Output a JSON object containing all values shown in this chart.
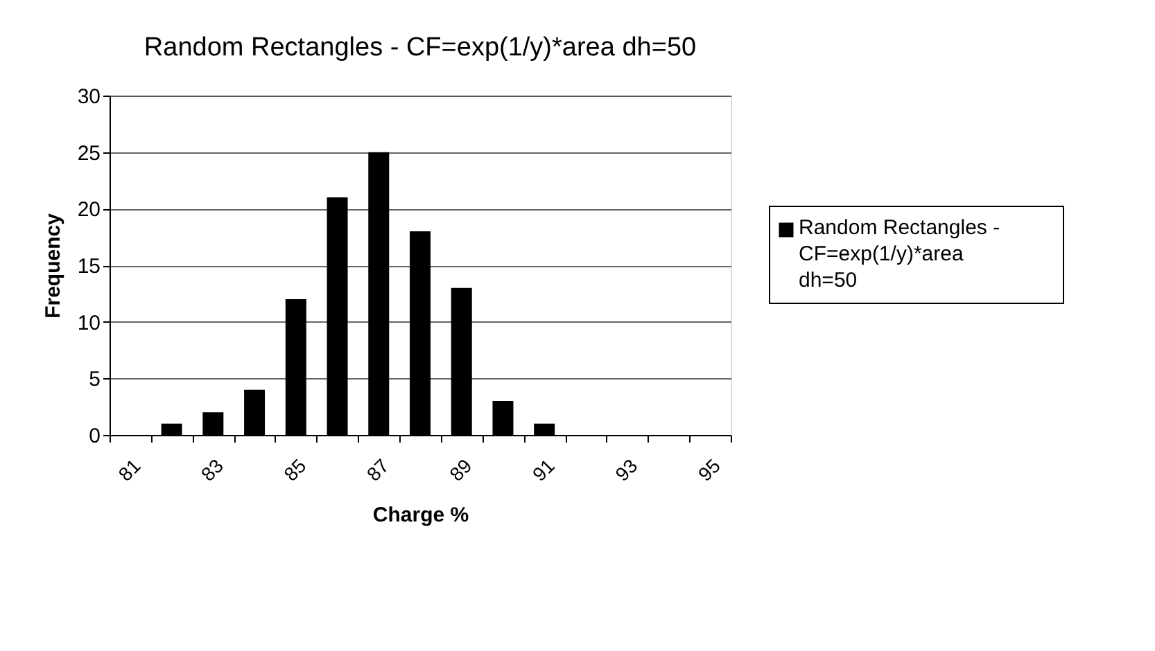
{
  "chart_data": {
    "type": "bar",
    "title": "Random Rectangles - CF=exp(1/y)*area  dh=50",
    "xlabel": "Charge %",
    "ylabel": "Frequency",
    "categories": [
      "81",
      null,
      "83",
      null,
      "85",
      null,
      "87",
      null,
      "89",
      null,
      "91",
      null,
      "93",
      null,
      "95"
    ],
    "series": [
      {
        "name": "Random Rectangles - CF=exp(1/y)*area dh=50",
        "color": "#000000",
        "values": [
          0,
          1,
          2,
          4,
          12,
          21,
          25,
          18,
          13,
          3,
          1,
          0,
          0,
          0,
          0
        ]
      }
    ],
    "ylim": [
      0,
      30
    ],
    "yticks": [
      0,
      5,
      10,
      15,
      20,
      25,
      30
    ],
    "grid": "y",
    "legend": "right"
  }
}
